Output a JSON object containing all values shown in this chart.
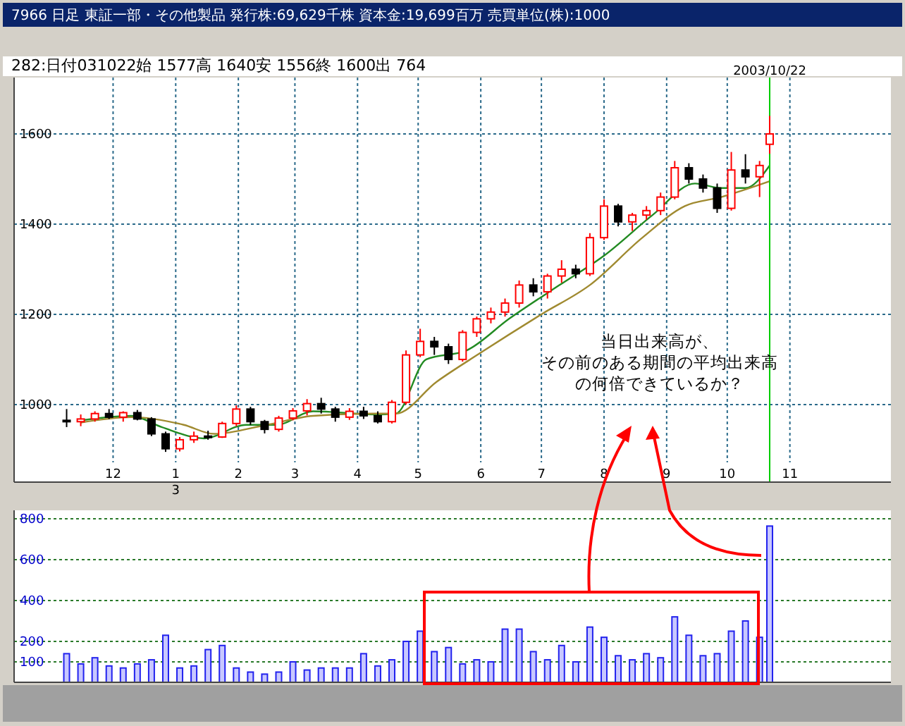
{
  "chart_data": [
    {
      "type": "candlestick",
      "title": "7966 日足 東証一部・その他製品 発行株:69,629千株 資本金:19,699百万 売買単位(株):1000",
      "x": [
        "2002-11-08",
        "2002-11-15",
        "2002-11-22",
        "2002-11-29",
        "2002-12-06",
        "2002-12-13",
        "2002-12-20",
        "2002-12-27",
        "2003-01-03",
        "2003-01-10",
        "2003-01-17",
        "2003-01-24",
        "2003-01-31",
        "2003-02-07",
        "2003-02-14",
        "2003-02-21",
        "2003-02-28",
        "2003-03-07",
        "2003-03-14",
        "2003-03-21",
        "2003-03-28",
        "2003-04-04",
        "2003-04-11",
        "2003-04-18",
        "2003-04-25",
        "2003-05-02",
        "2003-05-09",
        "2003-05-16",
        "2003-05-23",
        "2003-05-30",
        "2003-06-06",
        "2003-06-13",
        "2003-06-20",
        "2003-06-27",
        "2003-07-04",
        "2003-07-11",
        "2003-07-18",
        "2003-07-25",
        "2003-08-01",
        "2003-08-08",
        "2003-08-15",
        "2003-08-22",
        "2003-08-29",
        "2003-09-05",
        "2003-09-12",
        "2003-09-19",
        "2003-09-26",
        "2003-10-03",
        "2003-10-10",
        "2003-10-17",
        "2003-10-22"
      ],
      "ohlc": [
        [
          965,
          990,
          950,
          962
        ],
        [
          962,
          978,
          952,
          968
        ],
        [
          968,
          985,
          962,
          980
        ],
        [
          980,
          990,
          968,
          972
        ],
        [
          972,
          985,
          962,
          982
        ],
        [
          982,
          988,
          965,
          968
        ],
        [
          968,
          972,
          930,
          935
        ],
        [
          935,
          940,
          895,
          902
        ],
        [
          902,
          928,
          896,
          922
        ],
        [
          922,
          940,
          915,
          930
        ],
        [
          930,
          942,
          922,
          928
        ],
        [
          928,
          962,
          926,
          958
        ],
        [
          958,
          998,
          952,
          990
        ],
        [
          990,
          995,
          955,
          962
        ],
        [
          962,
          966,
          936,
          945
        ],
        [
          945,
          975,
          940,
          970
        ],
        [
          970,
          992,
          965,
          986
        ],
        [
          986,
          1012,
          976,
          1002
        ],
        [
          1002,
          1015,
          980,
          990
        ],
        [
          990,
          995,
          962,
          972
        ],
        [
          972,
          992,
          966,
          985
        ],
        [
          985,
          995,
          968,
          975
        ],
        [
          975,
          985,
          958,
          962
        ],
        [
          962,
          1010,
          958,
          1005
        ],
        [
          1005,
          1120,
          1000,
          1110
        ],
        [
          1110,
          1168,
          1105,
          1140
        ],
        [
          1140,
          1150,
          1110,
          1128
        ],
        [
          1128,
          1135,
          1090,
          1100
        ],
        [
          1100,
          1165,
          1095,
          1160
        ],
        [
          1160,
          1195,
          1150,
          1190
        ],
        [
          1190,
          1215,
          1180,
          1205
        ],
        [
          1205,
          1235,
          1195,
          1225
        ],
        [
          1225,
          1275,
          1215,
          1265
        ],
        [
          1265,
          1280,
          1240,
          1250
        ],
        [
          1250,
          1290,
          1235,
          1285
        ],
        [
          1285,
          1320,
          1270,
          1300
        ],
        [
          1300,
          1310,
          1280,
          1290
        ],
        [
          1290,
          1380,
          1285,
          1370
        ],
        [
          1370,
          1455,
          1365,
          1440
        ],
        [
          1440,
          1445,
          1395,
          1405
        ],
        [
          1405,
          1425,
          1385,
          1420
        ],
        [
          1420,
          1440,
          1410,
          1430
        ],
        [
          1430,
          1470,
          1420,
          1460
        ],
        [
          1460,
          1540,
          1455,
          1525
        ],
        [
          1525,
          1535,
          1490,
          1500
        ],
        [
          1500,
          1510,
          1470,
          1480
        ],
        [
          1480,
          1490,
          1425,
          1435
        ],
        [
          1435,
          1560,
          1430,
          1520
        ],
        [
          1520,
          1555,
          1490,
          1505
        ],
        [
          1505,
          1540,
          1460,
          1530
        ],
        [
          1577,
          1640,
          1556,
          1600
        ]
      ],
      "colors": [
        "#000000",
        "#ff0000",
        "#ff0000",
        "#000000",
        "#ff0000",
        "#000000",
        "#000000",
        "#000000",
        "#ff0000",
        "#ff0000",
        "#000000",
        "#ff0000",
        "#ff0000",
        "#000000",
        "#000000",
        "#ff0000",
        "#ff0000",
        "#ff0000",
        "#000000",
        "#000000",
        "#ff0000",
        "#000000",
        "#000000",
        "#ff0000",
        "#ff0000",
        "#ff0000",
        "#000000",
        "#000000",
        "#ff0000",
        "#ff0000",
        "#ff0000",
        "#ff0000",
        "#ff0000",
        "#000000",
        "#ff0000",
        "#ff0000",
        "#000000",
        "#ff0000",
        "#ff0000",
        "#000000",
        "#ff0000",
        "#ff0000",
        "#ff0000",
        "#ff0000",
        "#000000",
        "#000000",
        "#000000",
        "#ff0000",
        "#000000",
        "#ff0000",
        "#ff0000"
      ],
      "series": [
        {
          "type": "line",
          "color": "#228b22",
          "x": [
            "2002-11-15",
            "2002-12-10",
            "2002-12-25",
            "2003-01-15",
            "2003-02-05",
            "2003-02-20",
            "2003-03-10",
            "2003-04-10",
            "2003-04-20",
            "2003-05-05",
            "2003-05-25",
            "2003-06-15",
            "2003-07-10",
            "2003-08-01",
            "2003-08-25",
            "2003-09-15",
            "2003-09-28",
            "2003-10-10",
            "2003-10-22"
          ],
          "values": [
            965,
            975,
            950,
            925,
            955,
            955,
            985,
            978,
            980,
            1100,
            1120,
            1190,
            1265,
            1330,
            1420,
            1490,
            1480,
            1480,
            1530
          ]
        },
        {
          "type": "line",
          "color": "#a08a30",
          "x": [
            "2002-11-15",
            "2002-12-10",
            "2003-01-05",
            "2003-01-20",
            "2003-02-15",
            "2003-03-10",
            "2003-04-10",
            "2003-04-20",
            "2003-05-10",
            "2003-06-01",
            "2003-07-01",
            "2003-07-25",
            "2003-08-20",
            "2003-09-10",
            "2003-09-28",
            "2003-10-22"
          ],
          "values": [
            960,
            972,
            955,
            935,
            955,
            975,
            980,
            980,
            1050,
            1115,
            1200,
            1265,
            1370,
            1440,
            1460,
            1495
          ]
        }
      ],
      "xlim": [
        "2002-10-13",
        "2003-12-21"
      ],
      "xticks": [
        {
          "value": "2002-12-01",
          "label": "12"
        },
        {
          "value": "2003-01-01",
          "label": "1\n3"
        },
        {
          "value": "2003-02-01",
          "label": "2"
        },
        {
          "value": "2003-03-01",
          "label": "3"
        },
        {
          "value": "2003-04-01",
          "label": "4"
        },
        {
          "value": "2003-05-01",
          "label": "5"
        },
        {
          "value": "2003-06-01",
          "label": "6"
        },
        {
          "value": "2003-07-01",
          "label": "7"
        },
        {
          "value": "2003-08-01",
          "label": "8"
        },
        {
          "value": "2003-09-01",
          "label": "9"
        },
        {
          "value": "2003-10-01",
          "label": "10"
        },
        {
          "value": "2003-11-01",
          "label": "11"
        }
      ],
      "ylim": [
        828,
        1725
      ],
      "yticks": [
        1000,
        1200,
        1400,
        1600
      ],
      "grid": true,
      "ref_lines": [
        {
          "axis": "x",
          "value": "2003-10-22",
          "label": "2003/10/22",
          "color": "#00cc00"
        }
      ],
      "annotations": [
        "282:日付031022始 1577高 1640安 1556終 1600出 764",
        "当日出来高が、",
        "その前のある期間の平均出来高",
        "の何倍できているか？"
      ]
    },
    {
      "type": "bar",
      "color": "#2222ee",
      "x": [
        "2002-11-08",
        "2002-11-15",
        "2002-11-22",
        "2002-11-29",
        "2002-12-06",
        "2002-12-13",
        "2002-12-20",
        "2002-12-27",
        "2003-01-03",
        "2003-01-10",
        "2003-01-17",
        "2003-01-24",
        "2003-01-31",
        "2003-02-07",
        "2003-02-14",
        "2003-02-21",
        "2003-02-28",
        "2003-03-07",
        "2003-03-14",
        "2003-03-21",
        "2003-03-28",
        "2003-04-04",
        "2003-04-11",
        "2003-04-18",
        "2003-04-25",
        "2003-05-02",
        "2003-05-09",
        "2003-05-16",
        "2003-05-23",
        "2003-05-30",
        "2003-06-06",
        "2003-06-13",
        "2003-06-20",
        "2003-06-27",
        "2003-07-04",
        "2003-07-11",
        "2003-07-18",
        "2003-07-25",
        "2003-08-01",
        "2003-08-08",
        "2003-08-15",
        "2003-08-22",
        "2003-08-29",
        "2003-09-05",
        "2003-09-12",
        "2003-09-19",
        "2003-09-26",
        "2003-10-03",
        "2003-10-10",
        "2003-10-17",
        "2003-10-22"
      ],
      "values": [
        140,
        90,
        120,
        80,
        70,
        90,
        110,
        230,
        70,
        80,
        160,
        180,
        70,
        50,
        40,
        50,
        100,
        60,
        70,
        70,
        70,
        140,
        80,
        110,
        200,
        250,
        150,
        170,
        90,
        110,
        100,
        260,
        260,
        150,
        110,
        180,
        100,
        270,
        220,
        130,
        110,
        140,
        120,
        320,
        230,
        130,
        140,
        250,
        300,
        220,
        764
      ],
      "xlim": [
        "2002-10-13",
        "2003-12-21"
      ],
      "ylim": [
        0,
        841
      ],
      "yticks": [
        100,
        200,
        400,
        600,
        800
      ],
      "grid": "y",
      "tick_labels": "y"
    }
  ]
}
